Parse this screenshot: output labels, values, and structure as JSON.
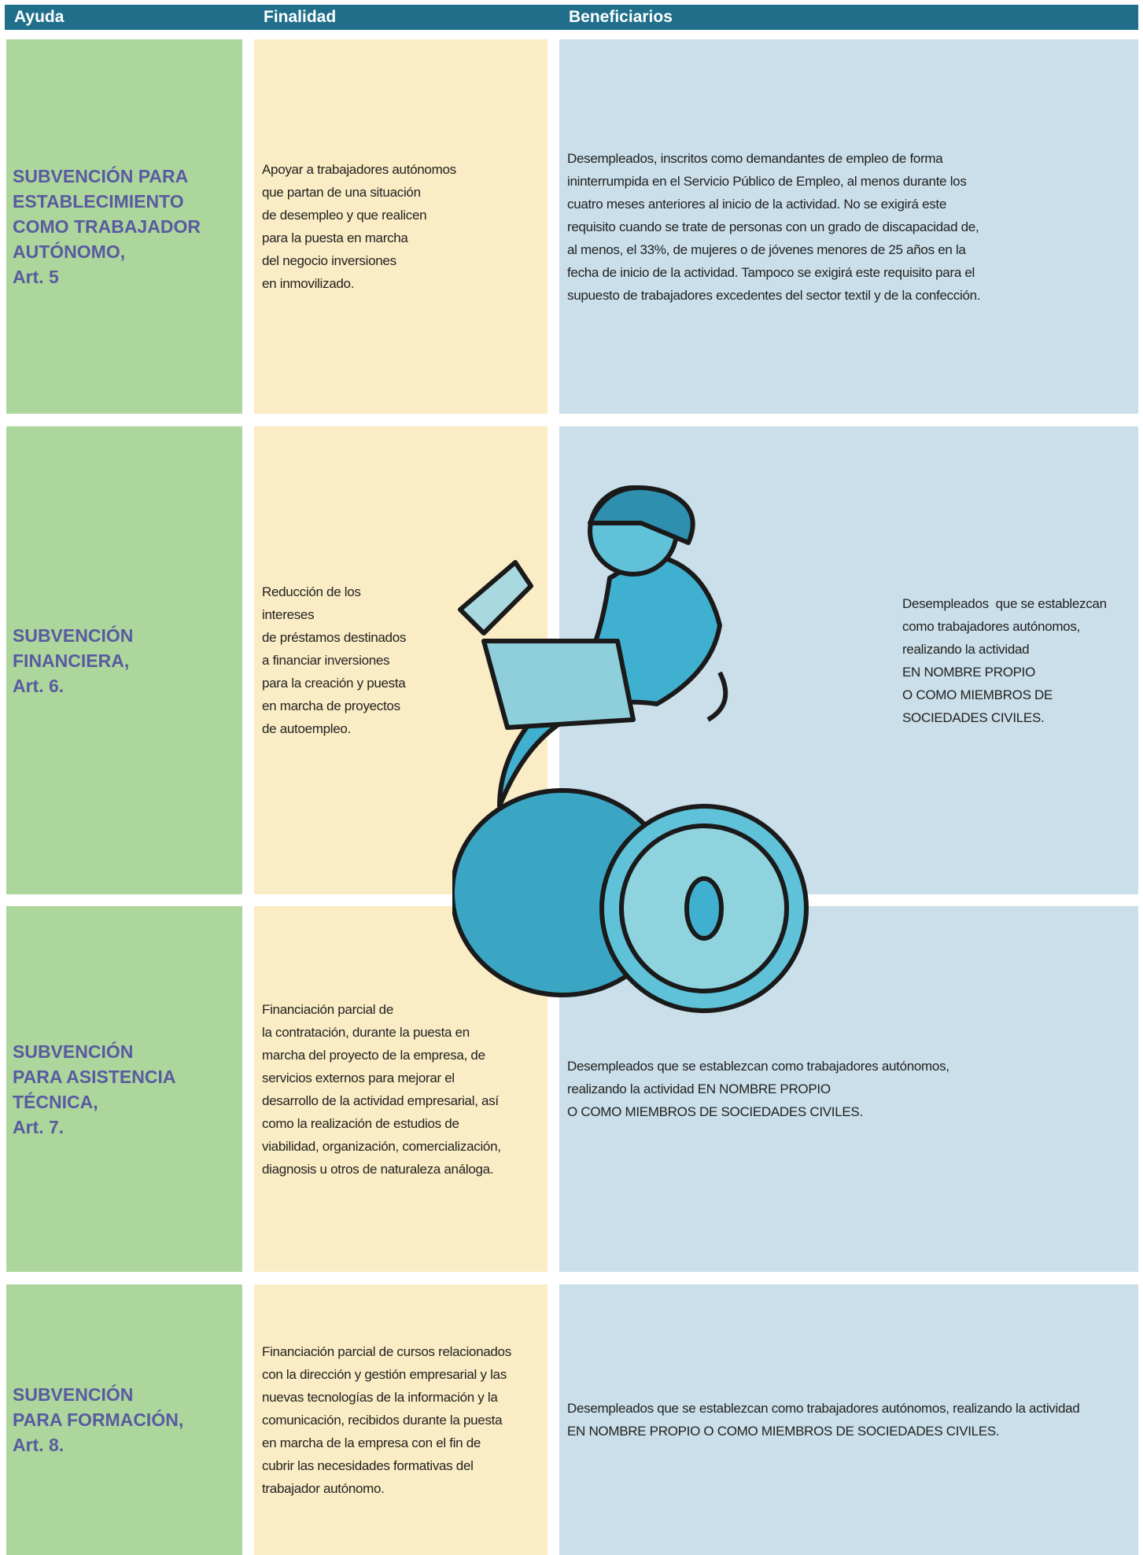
{
  "header": {
    "columns": [
      "Ayuda",
      "Finalidad",
      "Beneficiarios"
    ]
  },
  "rows": [
    {
      "ayuda": [
        "SUBVENCIÓN PARA",
        "ESTABLECIMIENTO",
        "COMO TRABAJADOR",
        "AUTÓNOMO,",
        "Art. 5"
      ],
      "finalidad": [
        "Apoyar a trabajadores autónomos",
        "que partan de una situación",
        "de desempleo y que realicen",
        "para la puesta en marcha",
        "del negocio inversiones",
        "en inmovilizado."
      ],
      "beneficiarios": [
        "Desempleados, inscritos como demandantes de empleo de forma",
        "ininterrumpida en el Servicio Público de Empleo, al menos durante los",
        "cuatro meses anteriores al inicio de la actividad. No se exigirá este",
        "requisito cuando se trate de personas con un grado de discapacidad de,",
        "al menos, el 33%, de mujeres o de jóvenes menores de 25 años en la",
        "fecha de inicio de la actividad. Tampoco se exigirá este requisito para el",
        "supuesto de trabajadores excedentes del sector textil y de la confección."
      ]
    },
    {
      "ayuda": [
        "SUBVENCIÓN",
        "FINANCIERA,",
        "Art. 6."
      ],
      "finalidad": [
        "Reducción de los",
        "intereses",
        "de préstamos destinados",
        "a financiar inversiones",
        "para la creación y puesta",
        "en marcha de proyectos",
        "de autoempleo."
      ],
      "beneficiarios": [
        "Desempleados  que se establezcan",
        "como trabajadores autónomos,",
        "realizando la actividad",
        "EN NOMBRE PROPIO",
        "O COMO MIEMBROS DE",
        "SOCIEDADES CIVILES."
      ]
    },
    {
      "ayuda": [
        "SUBVENCIÓN",
        "PARA ASISTENCIA",
        "TÉCNICA,",
        "Art. 7."
      ],
      "finalidad": [
        "Financiación parcial de",
        "la contratación, durante la puesta en",
        "marcha del proyecto de la empresa, de",
        "servicios externos para mejorar el",
        "desarrollo de la actividad empresarial, así",
        "como la realización de estudios de",
        "viabilidad, organización, comercialización,",
        "diagnosis u otros de naturaleza análoga."
      ],
      "beneficiarios": [
        "Desempleados que se establezcan como trabajadores autónomos,",
        "realizando la actividad EN NOMBRE PROPIO",
        "O COMO MIEMBROS DE SOCIEDADES CIVILES."
      ]
    },
    {
      "ayuda": [
        "SUBVENCIÓN",
        "PARA FORMACIÓN,",
        "Art. 8."
      ],
      "finalidad": [
        "Financiación parcial de cursos relacionados",
        "con la dirección y gestión empresarial y las",
        "nuevas tecnologías de la información y la",
        "comunicación, recibidos durante la puesta",
        "en marcha de la empresa con el fin de",
        "cubrir las necesidades formativas del",
        "trabajador autónomo."
      ],
      "beneficiarios": [
        "Desempleados que se establezcan como trabajadores autónomos, realizando la actividad",
        "EN NOMBRE PROPIO O COMO MIEMBROS DE SOCIEDADES CIVILES."
      ]
    }
  ]
}
